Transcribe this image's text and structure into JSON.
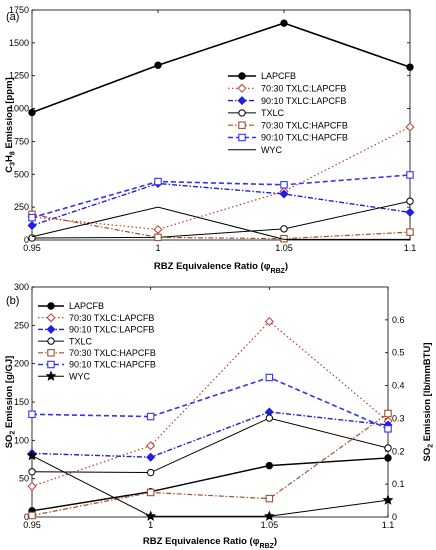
{
  "chart_data": [
    {
      "panel_label": "(a)",
      "type": "line",
      "xlabel": "RBZ Equivalence Ratio (φ",
      "xlabel_sub": "RBZ",
      "xlabel_end": ")",
      "ylabel": "C",
      "ylabel_parts": [
        "3",
        "H",
        "8",
        " Emission [ppm]"
      ],
      "x": [
        0.95,
        1,
        1.05,
        1.1
      ],
      "x_tick_labels": [
        "0.95",
        "1",
        "1.05",
        "1.1"
      ],
      "xlim": [
        0.95,
        1.1
      ],
      "ylim": [
        0,
        1750
      ],
      "y_ticks": [
        0,
        250,
        500,
        750,
        1000,
        1250,
        1500,
        1750
      ],
      "y_tick_labels": [
        "0",
        "250",
        "500",
        "750",
        "1000",
        "1250",
        "1500",
        "1750"
      ],
      "legend_position": "center-right",
      "series": [
        {
          "name": "LAPCFB",
          "values": [
            970,
            1330,
            1650,
            1315
          ],
          "color": "#000000",
          "dash": "solid",
          "marker": "circle-filled",
          "width": 1.6
        },
        {
          "name": "70:30 TXLC:LAPCFB",
          "values": [
            175,
            80,
            370,
            860
          ],
          "color": "#c0392b",
          "dash": "dot",
          "marker": "diamond-open",
          "width": 1.2
        },
        {
          "name": "90:10 TXLC:LAPCFB",
          "values": [
            110,
            430,
            350,
            210
          ],
          "color": "#1f1fdd",
          "dash": "dashdot",
          "marker": "diamond-filled",
          "width": 1.4
        },
        {
          "name": "TXLC",
          "values": [
            15,
            20,
            85,
            295
          ],
          "color": "#000000",
          "dash": "solid",
          "marker": "circle-open",
          "width": 1.0
        },
        {
          "name": "70:30 TXLC:HAPCFB",
          "values": [
            195,
            20,
            10,
            60
          ],
          "color": "#a0522d",
          "dash": "dashdot",
          "marker": "square-open",
          "width": 1.2
        },
        {
          "name": "90:10 TXLC:HAPCFB",
          "values": [
            170,
            445,
            420,
            495
          ],
          "color": "#3333ff",
          "dash": "dash",
          "marker": "square-open",
          "width": 1.6
        },
        {
          "name": "WYC",
          "values": [
            25,
            250,
            5,
            5
          ],
          "color": "#000000",
          "dash": "solid",
          "marker": "none",
          "width": 1.0
        }
      ]
    },
    {
      "panel_label": "(b)",
      "type": "line",
      "xlabel": "RBZ Equivalence Ratio (φ",
      "xlabel_sub": "RBZ",
      "xlabel_end": ")",
      "ylabel": "SO",
      "ylabel_parts": [
        "2",
        " Emission [g/GJ]"
      ],
      "y2label": "SO",
      "y2label_parts": [
        "2",
        " Emission [lb/mmBTU]"
      ],
      "x": [
        0.95,
        1,
        1.05,
        1.1
      ],
      "x_tick_labels": [
        "0.95",
        "1",
        "1.05",
        "1.1"
      ],
      "xlim": [
        0.95,
        1.1
      ],
      "ylim": [
        0,
        300
      ],
      "y_ticks": [
        0,
        50,
        100,
        150,
        200,
        250,
        300
      ],
      "y_tick_labels": [
        "0",
        "50",
        "100",
        "150",
        "200",
        "250",
        "300"
      ],
      "y2lim": [
        0,
        0.7
      ],
      "y2_ticks": [
        0,
        0.1,
        0.2,
        0.3,
        0.4,
        0.5,
        0.6
      ],
      "y2_tick_labels": [
        "0",
        "0.1",
        "0.2",
        "0.3",
        "0.4",
        "0.5",
        "0.6"
      ],
      "legend_position": "top-left",
      "series": [
        {
          "name": "LAPCFB",
          "values": [
            8,
            33,
            67,
            77
          ],
          "color": "#000000",
          "dash": "solid",
          "marker": "circle-filled",
          "width": 1.4
        },
        {
          "name": "70:30 TXLC:LAPCFB",
          "values": [
            40,
            93,
            255,
            125
          ],
          "color": "#c0392b",
          "dash": "dot",
          "marker": "diamond-open",
          "width": 1.2
        },
        {
          "name": "90:10 TXLC:LAPCFB",
          "values": [
            83,
            78,
            137,
            120
          ],
          "color": "#1f1fdd",
          "dash": "dashdot",
          "marker": "diamond-filled",
          "width": 1.4
        },
        {
          "name": "TXLC",
          "values": [
            59,
            58,
            129,
            90
          ],
          "color": "#000000",
          "dash": "solid",
          "marker": "circle-open",
          "width": 1.0
        },
        {
          "name": "70:30 TXLC:HAPCFB",
          "values": [
            2,
            32,
            24,
            135
          ],
          "color": "#a0522d",
          "dash": "dashdot",
          "marker": "square-open",
          "width": 1.2
        },
        {
          "name": "90:10 TXLC:HAPCFB",
          "values": [
            134,
            131,
            182,
            115
          ],
          "color": "#3333ff",
          "dash": "dash",
          "marker": "square-open",
          "width": 1.6
        },
        {
          "name": "WYC",
          "values": [
            80,
            1,
            1,
            22
          ],
          "color": "#000000",
          "dash": "solid",
          "marker": "star-filled",
          "width": 1.0
        }
      ]
    }
  ]
}
